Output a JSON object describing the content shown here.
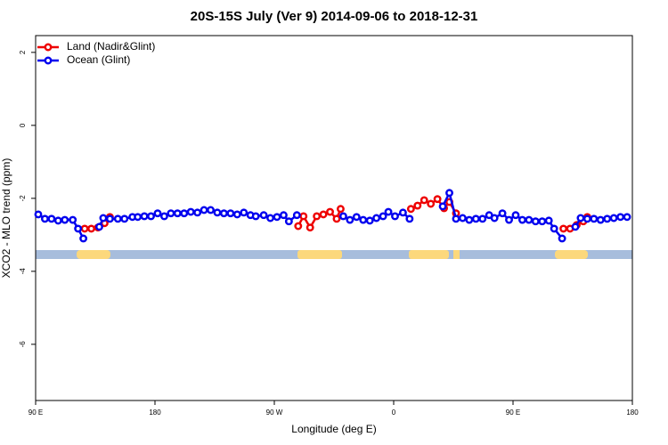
{
  "chart_data": {
    "type": "line",
    "title": "20S-15S July (Ver 9)   2014-09-06 to 2018-12-31",
    "x_label": "Longitude (deg E)",
    "y_label": "XCO2 - MLO trend (ppm)",
    "xlim": [
      90,
      540
    ],
    "xticks": [
      {
        "value": 90,
        "label": "90 E"
      },
      {
        "value": 180,
        "label": "180"
      },
      {
        "value": 270,
        "label": "90 W"
      },
      {
        "value": 360,
        "label": "0"
      },
      {
        "value": 450,
        "label": "90 E"
      },
      {
        "value": 540,
        "label": "180"
      }
    ],
    "ylim": [
      -7.54,
      2.46
    ],
    "yticks": [
      2,
      0,
      -2,
      -4,
      -6
    ],
    "legend": "top-left",
    "series": [
      {
        "name": "Land (Nadir&Glint)",
        "color": "#ee0000",
        "x": [
          127,
          132,
          137,
          142,
          146,
          null,
          288,
          292,
          297,
          302,
          307,
          312,
          317,
          320,
          null,
          373,
          378,
          383,
          388,
          393,
          398,
          402,
          407,
          null,
          488,
          493,
          498,
          503,
          506
        ],
        "values": [
          -2.83,
          -2.83,
          -2.8,
          -2.68,
          -2.51,
          null,
          -2.76,
          -2.49,
          -2.8,
          -2.49,
          -2.44,
          -2.37,
          -2.56,
          -2.29,
          null,
          -2.29,
          -2.2,
          -2.05,
          -2.15,
          -2.02,
          -2.27,
          -2.1,
          -2.41,
          null,
          -2.83,
          -2.83,
          -2.73,
          -2.63,
          -2.51
        ]
      },
      {
        "name": "Ocean (Glint)",
        "color": "#0000ee",
        "x": [
          92,
          97,
          102,
          107,
          112,
          118,
          122,
          126,
          null,
          138,
          141,
          146,
          152,
          157,
          163,
          167,
          172,
          177,
          182,
          187,
          192,
          197,
          202,
          207,
          212,
          217,
          222,
          227,
          232,
          237,
          242,
          247,
          252,
          256,
          262,
          267,
          272,
          277,
          281,
          287,
          null,
          322,
          327,
          332,
          337,
          342,
          347,
          352,
          356,
          361,
          367,
          372,
          null,
          397,
          402,
          407,
          412,
          417,
          422,
          427,
          432,
          436,
          442,
          447,
          452,
          457,
          462,
          467,
          472,
          477,
          481,
          487,
          null,
          497,
          501,
          506,
          511,
          516,
          521,
          526,
          531,
          536
        ],
        "values": [
          -2.44,
          -2.56,
          -2.56,
          -2.61,
          -2.59,
          -2.59,
          -2.83,
          -3.1,
          null,
          -2.78,
          -2.54,
          -2.56,
          -2.56,
          -2.56,
          -2.51,
          -2.51,
          -2.49,
          -2.49,
          -2.41,
          -2.49,
          -2.41,
          -2.41,
          -2.41,
          -2.37,
          -2.39,
          -2.32,
          -2.32,
          -2.39,
          -2.41,
          -2.41,
          -2.44,
          -2.39,
          -2.46,
          -2.49,
          -2.46,
          -2.54,
          -2.51,
          -2.46,
          -2.63,
          -2.46,
          null,
          -2.49,
          -2.59,
          -2.51,
          -2.59,
          -2.61,
          -2.54,
          -2.49,
          -2.37,
          -2.49,
          -2.39,
          -2.56,
          null,
          -2.22,
          -1.85,
          -2.56,
          -2.54,
          -2.59,
          -2.56,
          -2.56,
          -2.46,
          -2.54,
          -2.41,
          -2.59,
          -2.46,
          -2.59,
          -2.59,
          -2.63,
          -2.63,
          -2.61,
          -2.83,
          -3.1,
          null,
          -2.78,
          -2.54,
          -2.56,
          -2.56,
          -2.59,
          -2.56,
          -2.54,
          -2.51,
          -2.51
        ]
      }
    ]
  }
}
